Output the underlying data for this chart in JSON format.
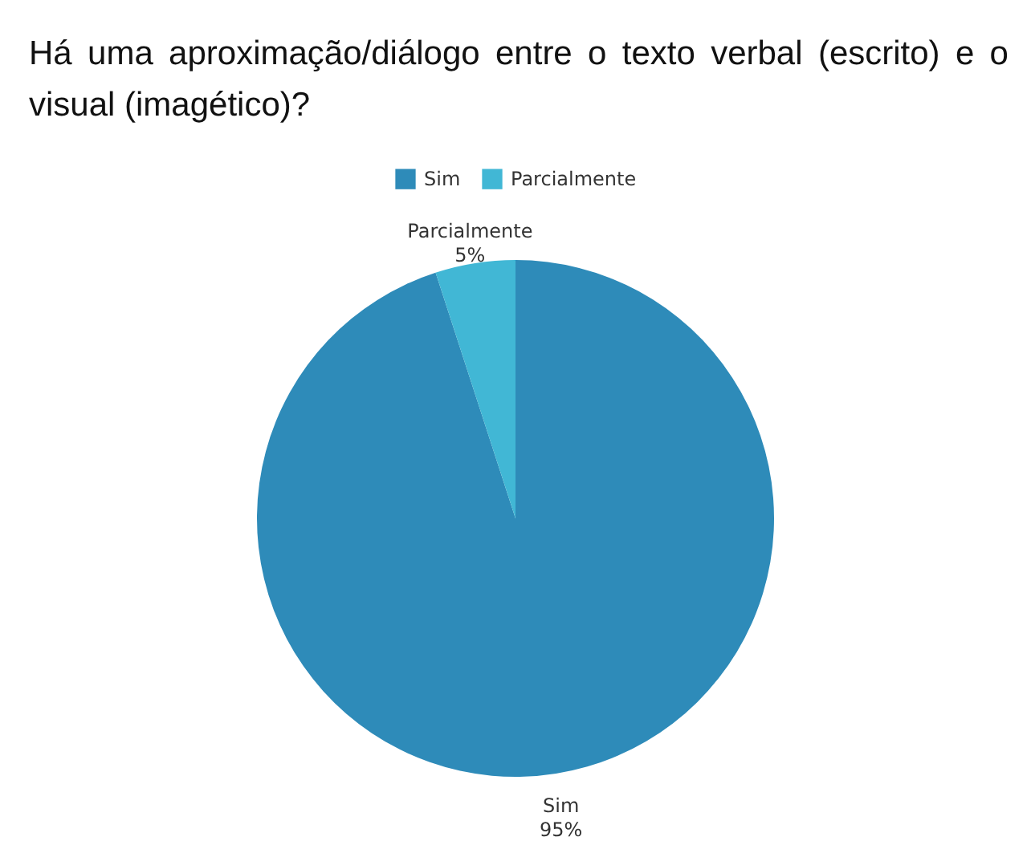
{
  "chart_data": {
    "type": "pie",
    "title": "Há uma aproximação/diálogo entre o texto verbal (escrito) e o visual (imagético)?",
    "categories": [
      "Sim",
      "Parcialmente"
    ],
    "values": [
      95,
      5
    ],
    "colors": [
      "#2e8bb9",
      "#41b7d5"
    ],
    "value_labels": [
      "95%",
      "5%"
    ],
    "legend": "top"
  }
}
